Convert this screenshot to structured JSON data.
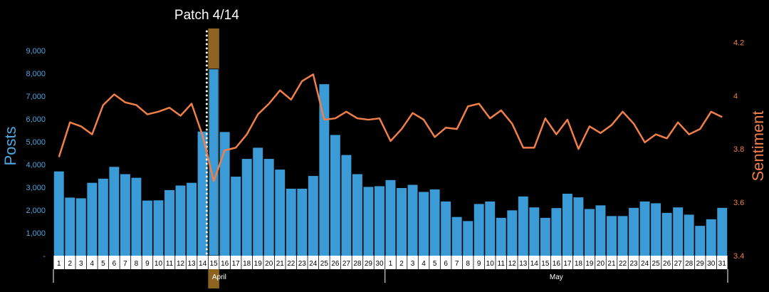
{
  "chart_data": {
    "type": "bar+line",
    "annotation": "Patch 4/14",
    "y_left": {
      "label": "Posts",
      "ticks": [
        "-",
        "1,000",
        "2,000",
        "3,000",
        "4,000",
        "5,000",
        "6,000",
        "7,000",
        "8,000",
        "9,000"
      ],
      "range": [
        0,
        9600
      ]
    },
    "y_right": {
      "label": "Sentiment",
      "ticks": [
        "3.4",
        "3.6",
        "3.8",
        "4",
        "4.2"
      ],
      "range": [
        3.4,
        4.22
      ]
    },
    "months": [
      {
        "label": "April",
        "days": [
          "1",
          "2",
          "3",
          "4",
          "5",
          "6",
          "7",
          "8",
          "9",
          "10",
          "11",
          "12",
          "13",
          "14",
          "15",
          "16",
          "17",
          "18",
          "19",
          "20",
          "21",
          "22",
          "23",
          "24",
          "25",
          "26",
          "27",
          "28",
          "29",
          "30"
        ]
      },
      {
        "label": "May",
        "days": [
          "1",
          "2",
          "3",
          "4",
          "5",
          "6",
          "7",
          "8",
          "9",
          "10",
          "11",
          "12",
          "13",
          "14",
          "15",
          "16",
          "17",
          "18",
          "19",
          "20",
          "21",
          "22",
          "23",
          "24",
          "25",
          "26",
          "27",
          "28",
          "29",
          "30",
          "31"
        ]
      }
    ],
    "highlight": {
      "month": "April",
      "day": "15"
    },
    "series": [
      {
        "type": "bar",
        "axis": "left",
        "values": [
          3700,
          2550,
          2520,
          3200,
          3380,
          3900,
          3580,
          3420,
          2420,
          2430,
          2880,
          3080,
          3200,
          5450,
          8200,
          5430,
          3470,
          4250,
          4740,
          4250,
          3780,
          2940,
          2940,
          3500,
          7530,
          5300,
          4420,
          3580,
          3020,
          3050,
          3320,
          2970,
          3110,
          2800,
          2910,
          2380,
          1700,
          1520,
          2270,
          2380,
          1660,
          1990,
          2600,
          2120,
          1660,
          2090,
          2720,
          2560,
          2050,
          2210,
          1740,
          1740,
          2100,
          2380,
          2300,
          1880,
          2120,
          1800,
          1310,
          1600,
          2100
        ],
        "color": "#3b9bd6"
      },
      {
        "type": "line",
        "axis": "right",
        "values": [
          3.77,
          3.9,
          3.885,
          3.855,
          3.965,
          4.005,
          3.975,
          3.965,
          3.93,
          3.94,
          3.955,
          3.925,
          3.97,
          3.85,
          3.68,
          3.795,
          3.805,
          3.855,
          3.93,
          3.97,
          4.02,
          3.985,
          4.055,
          4.08,
          3.91,
          3.915,
          3.94,
          3.915,
          3.91,
          3.915,
          3.83,
          3.875,
          3.935,
          3.91,
          3.845,
          3.88,
          3.875,
          3.96,
          3.97,
          3.915,
          3.945,
          3.895,
          3.805,
          3.805,
          3.915,
          3.855,
          3.91,
          3.8,
          3.885,
          3.86,
          3.89,
          3.94,
          3.895,
          3.825,
          3.855,
          3.84,
          3.9,
          3.855,
          3.875,
          3.94,
          3.92
        ],
        "color": "#f07f4a"
      }
    ]
  }
}
